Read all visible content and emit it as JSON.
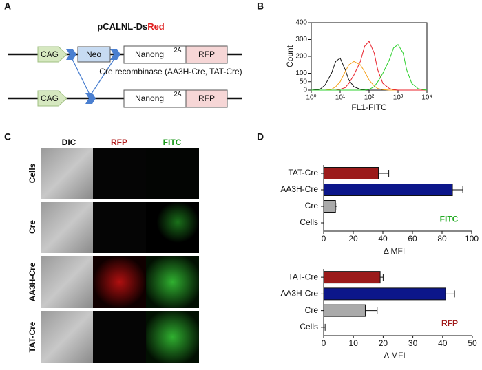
{
  "panel_labels": [
    "A",
    "B",
    "C",
    "D"
  ],
  "diagram": {
    "title_parts": [
      "pCALNL-Ds",
      "Red"
    ],
    "caption": "Cre recombinase (AA3H-Cre, TAT-Cre)",
    "rows": [
      {
        "boxes": [
          "CAG",
          "Neo",
          "Nanong",
          "2A",
          "RFP"
        ]
      },
      {
        "boxes": [
          "CAG",
          "Nanong",
          "2A",
          "RFP"
        ]
      }
    ]
  },
  "microscopy": {
    "columns": [
      "DIC",
      "RFP",
      "FITC"
    ],
    "rows": [
      "Cells",
      "Cre",
      "AA3H-Cre",
      "TAT-Cre"
    ]
  },
  "chart_data": [
    {
      "type": "histogram-lines",
      "x_label": "FL1-FITC",
      "y_label": "Count",
      "xscale": "log",
      "xlim": [
        1,
        10000
      ],
      "xticks": [
        {
          "value": 1,
          "label": "10⁰"
        },
        {
          "value": 10,
          "label": "10¹"
        },
        {
          "value": 100,
          "label": "10²"
        },
        {
          "value": 1000,
          "label": "10³"
        },
        {
          "value": 10000,
          "label": "10⁴"
        }
      ],
      "ylim": [
        0,
        400
      ],
      "yticks": [
        0,
        50,
        100,
        200,
        300,
        400
      ],
      "x": [
        1,
        2,
        3,
        5,
        7,
        10,
        15,
        20,
        30,
        50,
        70,
        100,
        150,
        200,
        300,
        500,
        700,
        1000,
        1500,
        2000,
        3000,
        5000,
        10000
      ],
      "series": [
        {
          "color": "#111111",
          "values": [
            0,
            5,
            30,
            100,
            170,
            190,
            120,
            60,
            20,
            5,
            2,
            0,
            0,
            0,
            0,
            0,
            0,
            0,
            0,
            0,
            0,
            0,
            0
          ]
        },
        {
          "color": "#f5a01a",
          "values": [
            0,
            0,
            0,
            5,
            20,
            50,
            110,
            150,
            170,
            150,
            110,
            60,
            25,
            10,
            3,
            0,
            0,
            0,
            0,
            0,
            0,
            0,
            0
          ]
        },
        {
          "color": "#e8202a",
          "values": [
            0,
            0,
            0,
            0,
            0,
            5,
            15,
            40,
            90,
            170,
            260,
            290,
            220,
            120,
            40,
            10,
            3,
            0,
            0,
            0,
            0,
            0,
            0
          ]
        },
        {
          "color": "#2ed02e",
          "values": [
            0,
            0,
            0,
            0,
            0,
            0,
            0,
            0,
            0,
            0,
            0,
            5,
            20,
            50,
            100,
            180,
            250,
            270,
            220,
            120,
            40,
            8,
            0
          ]
        }
      ]
    },
    {
      "type": "hbar",
      "x_label": "Δ MFI",
      "annotation": {
        "text": "FITC",
        "color": "#22aa22"
      },
      "categories": [
        "TAT-Cre",
        "AA3H-Cre",
        "Cre",
        "Cells"
      ],
      "values": [
        37,
        87,
        8,
        0
      ],
      "errors": [
        7,
        7,
        1,
        0
      ],
      "colors": [
        "#9b1b1b",
        "#0c168a",
        "#aaaaaa",
        "#ffffff"
      ],
      "xlim": [
        0,
        100
      ],
      "xticks": [
        0,
        20,
        40,
        60,
        80,
        100
      ]
    },
    {
      "type": "hbar",
      "x_label": "Δ MFI",
      "annotation": {
        "text": "RFP",
        "color": "#a01818"
      },
      "categories": [
        "TAT-Cre",
        "AA3H-Cre",
        "Cre",
        "Cells"
      ],
      "values": [
        19,
        41,
        14,
        0
      ],
      "errors": [
        1,
        3,
        4,
        0.5
      ],
      "colors": [
        "#9b1b1b",
        "#0c168a",
        "#aaaaaa",
        "#ffffff"
      ],
      "xlim": [
        0,
        50
      ],
      "xticks": [
        0,
        10,
        20,
        30,
        40,
        50
      ]
    }
  ]
}
